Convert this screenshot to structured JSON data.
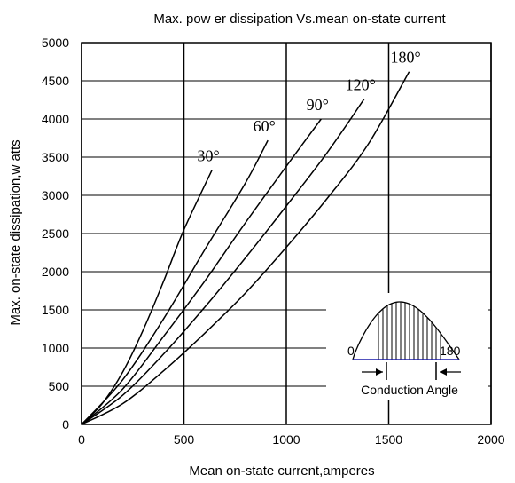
{
  "chart_data": {
    "type": "line",
    "title": "Max. pow er dissipation Vs.mean on-state current",
    "xlabel": "Mean on-state current,amperes",
    "ylabel": "Max. on-state dissipation,w atts",
    "xlim": [
      0,
      2000
    ],
    "ylim": [
      0,
      5000
    ],
    "x_ticks": [
      0,
      500,
      1000,
      1500,
      2000
    ],
    "x_tick_labels": [
      "0",
      "500",
      "1000",
      "1500",
      "2000"
    ],
    "y_ticks": [
      0,
      500,
      1000,
      1500,
      2000,
      2500,
      3000,
      3500,
      4000,
      4500,
      5000
    ],
    "y_tick_labels": [
      "0",
      "500",
      "1000",
      "1500",
      "2000",
      "2500",
      "3000",
      "3500",
      "4000",
      "4500",
      "5000"
    ],
    "grid": true,
    "series": [
      {
        "name": "30°",
        "x": [
          0,
          100,
          200,
          300,
          400,
          500,
          637
        ],
        "y": [
          0,
          270,
          680,
          1230,
          1870,
          2550,
          3330
        ]
      },
      {
        "name": "60°",
        "x": [
          0,
          200,
          400,
          600,
          800,
          910
        ],
        "y": [
          0,
          580,
          1380,
          2280,
          3160,
          3720
        ]
      },
      {
        "name": "90°",
        "x": [
          0,
          200,
          400,
          600,
          800,
          1000,
          1170
        ],
        "y": [
          0,
          460,
          1150,
          1870,
          2640,
          3380,
          4000
        ]
      },
      {
        "name": "120°",
        "x": [
          0,
          200,
          400,
          600,
          800,
          1000,
          1200,
          1380
        ],
        "y": [
          0,
          380,
          920,
          1530,
          2180,
          2860,
          3560,
          4260
        ]
      },
      {
        "name": "180°",
        "x": [
          0,
          200,
          400,
          600,
          800,
          1000,
          1200,
          1400,
          1600
        ],
        "y": [
          0,
          270,
          700,
          1190,
          1720,
          2320,
          2960,
          3670,
          4620
        ]
      }
    ],
    "inset": {
      "label_start": "0",
      "label_end": "180",
      "caption": "Conduction Angle"
    }
  }
}
